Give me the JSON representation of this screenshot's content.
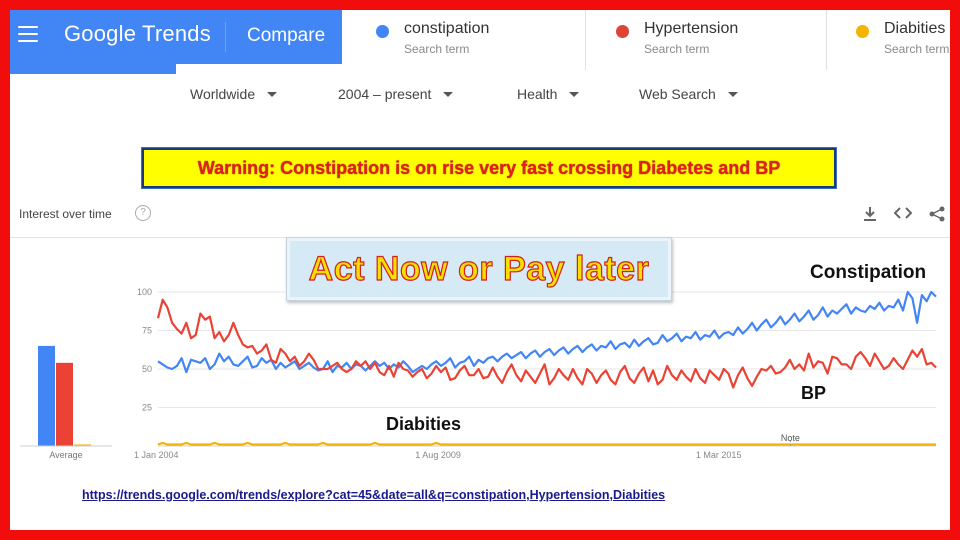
{
  "header": {
    "app_title": "Google Trends",
    "compare_label": "Compare",
    "terms": [
      {
        "name": "constipation",
        "sub": "Search term",
        "color": "#4285f4"
      },
      {
        "name": "Hypertension",
        "sub": "Search term",
        "color": "#db4437"
      },
      {
        "name": "Diabities",
        "sub": "Search term",
        "color": "#f4b400"
      }
    ]
  },
  "filters": {
    "region": "Worldwide",
    "time": "2004 – present",
    "category": "Health",
    "search_type": "Web Search"
  },
  "warning_text": "Warning: Constipation is on rise very fast crossing Diabetes and BP",
  "card": {
    "title": "Interest over time",
    "help_icon": "help-circle-icon",
    "tools": [
      "download-icon",
      "embed-code-icon",
      "share-icon"
    ]
  },
  "act_now_text": "Act Now or Pay later",
  "annotations": {
    "constipation": "Constipation",
    "bp": "BP",
    "diabities": "Diabities"
  },
  "note_label": "Note",
  "url_text": "https://trends.google.com/trends/explore?cat=45&date=all&q=constipation,Hypertension,Diabities",
  "chart_data": [
    {
      "type": "bar",
      "xlabel": "Average",
      "categories": [
        "constipation",
        "Hypertension",
        "Diabities"
      ],
      "values": [
        65,
        54,
        1
      ],
      "ylim": [
        0,
        100
      ],
      "colors": [
        "#4285f4",
        "#ea4335",
        "#f4b400"
      ]
    },
    {
      "type": "line",
      "x_start": 2004.0,
      "x_end": 2019.5,
      "xtick_labels": [
        {
          "label": "1 Jan 2004",
          "x": 2004.0
        },
        {
          "label": "1 Aug 2009",
          "x": 2009.58
        },
        {
          "label": "1 Mar 2015",
          "x": 2015.17
        }
      ],
      "yticks": [
        25,
        50,
        75,
        100
      ],
      "ylim": [
        0,
        100
      ],
      "grid": true,
      "series": [
        {
          "name": "constipation",
          "color": "#4285f4",
          "values": [
            55,
            53,
            51,
            50,
            52,
            57,
            48,
            56,
            55,
            54,
            57,
            50,
            53,
            60,
            55,
            58,
            53,
            52,
            55,
            58,
            51,
            52,
            57,
            54,
            56,
            50,
            54,
            51,
            53,
            55,
            50,
            52,
            54,
            51,
            49,
            50,
            55,
            48,
            52,
            51,
            54,
            50,
            53,
            52,
            49,
            52,
            55,
            52,
            54,
            50,
            53,
            51,
            55,
            52,
            48,
            50,
            52,
            50,
            53,
            55,
            52,
            54,
            57,
            51,
            54,
            55,
            58,
            52,
            56,
            54,
            57,
            58,
            55,
            58,
            60,
            57,
            59,
            61,
            57,
            60,
            62,
            58,
            61,
            63,
            59,
            62,
            64,
            60,
            63,
            65,
            61,
            64,
            66,
            62,
            65,
            64,
            68,
            63,
            66,
            67,
            64,
            69,
            65,
            68,
            70,
            66,
            67,
            72,
            68,
            70,
            73,
            68,
            71,
            70,
            74,
            69,
            72,
            71,
            75,
            70,
            73,
            74,
            72,
            77,
            73,
            76,
            80,
            75,
            79,
            82,
            77,
            80,
            84,
            79,
            82,
            86,
            81,
            84,
            88,
            82,
            85,
            90,
            84,
            88,
            86,
            89,
            92,
            86,
            90,
            88,
            87,
            91,
            89,
            93,
            88,
            91,
            90,
            95,
            88,
            100,
            96,
            80,
            98,
            94,
            100,
            97
          ]
        },
        {
          "name": "Hypertension",
          "color": "#ea4335",
          "values": [
            83,
            95,
            90,
            80,
            76,
            73,
            80,
            70,
            72,
            86,
            82,
            84,
            70,
            74,
            68,
            72,
            80,
            72,
            66,
            64,
            65,
            60,
            62,
            66,
            56,
            54,
            63,
            60,
            55,
            58,
            52,
            55,
            60,
            56,
            50,
            50,
            50,
            52,
            54,
            50,
            48,
            50,
            55,
            52,
            55,
            50,
            54,
            48,
            46,
            52,
            45,
            54,
            50,
            49,
            45,
            48,
            50,
            44,
            47,
            52,
            48,
            51,
            43,
            44,
            49,
            52,
            46,
            46,
            50,
            44,
            45,
            51,
            45,
            41,
            48,
            53,
            46,
            42,
            49,
            45,
            41,
            47,
            53,
            40,
            44,
            50,
            46,
            43,
            50,
            44,
            40,
            50,
            47,
            41,
            46,
            49,
            43,
            40,
            48,
            52,
            44,
            41,
            47,
            51,
            42,
            49,
            40,
            43,
            52,
            46,
            43,
            49,
            45,
            42,
            50,
            44,
            41,
            49,
            46,
            43,
            50,
            47,
            38,
            46,
            51,
            44,
            39,
            45,
            50,
            49,
            52,
            47,
            48,
            51,
            56,
            50,
            53,
            49,
            60,
            51,
            55,
            54,
            47,
            58,
            57,
            53,
            53,
            50,
            58,
            61,
            57,
            52,
            60,
            55,
            50,
            52,
            57,
            53,
            50,
            56,
            62,
            58,
            63,
            53,
            54,
            51
          ]
        },
        {
          "name": "Diabities",
          "color": "#f4b400",
          "values": [
            1,
            2,
            1,
            1,
            1,
            1,
            2,
            1,
            1,
            1,
            1,
            1,
            2,
            1,
            1,
            1,
            1,
            1,
            1,
            2,
            1,
            1,
            1,
            1,
            1,
            1,
            1,
            2,
            1,
            1,
            1,
            1,
            1,
            1,
            1,
            2,
            1,
            1,
            1,
            1,
            1,
            1,
            1,
            1,
            1,
            1,
            2,
            1,
            1,
            1,
            1,
            1,
            1,
            1,
            1,
            1,
            1,
            1,
            1,
            2,
            1,
            1,
            1,
            1,
            1,
            1,
            1,
            1,
            1,
            1,
            1,
            1,
            1,
            1,
            1,
            1,
            1,
            1,
            1,
            1,
            1,
            1,
            1,
            1,
            1,
            1,
            1,
            1,
            1,
            1,
            1,
            1,
            1,
            1,
            1,
            1,
            1,
            1,
            1,
            1,
            1,
            1,
            1,
            1,
            1,
            1,
            1,
            1,
            1,
            1,
            1,
            1,
            1,
            1,
            1,
            1,
            1,
            1,
            1,
            1,
            1,
            1,
            1,
            1,
            1,
            1,
            1,
            1,
            1,
            1,
            1,
            1,
            1,
            1,
            1,
            1,
            1,
            1,
            1,
            1,
            1,
            1,
            1,
            1,
            1,
            1,
            1,
            1,
            1,
            1,
            1,
            1,
            1,
            1,
            1,
            1,
            1,
            1,
            1,
            1,
            1,
            1,
            1,
            1,
            1,
            1
          ]
        }
      ]
    }
  ]
}
